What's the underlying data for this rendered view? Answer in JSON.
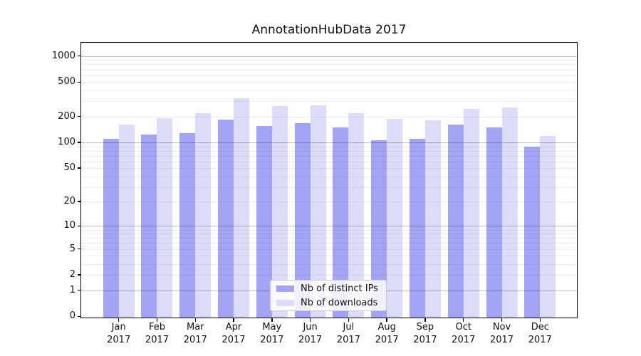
{
  "chart_data": {
    "type": "bar",
    "title": "AnnotationHubData 2017",
    "categories": [
      "Jan 2017",
      "Feb 2017",
      "Mar 2017",
      "Apr 2017",
      "May 2017",
      "Jun 2017",
      "Jul 2017",
      "Aug 2017",
      "Sep 2017",
      "Oct 2017",
      "Nov 2017",
      "Dec 2017"
    ],
    "x_tick_line1": [
      "Jan",
      "Feb",
      "Mar",
      "Apr",
      "May",
      "Jun",
      "Jul",
      "Aug",
      "Sep",
      "Oct",
      "Nov",
      "Dec"
    ],
    "x_tick_line2": "2017",
    "series": [
      {
        "name": "Nb of distinct IPs",
        "color": "#a4a4f4",
        "values": [
          110,
          124,
          128,
          185,
          156,
          167,
          148,
          107,
          110,
          162,
          149,
          89
        ]
      },
      {
        "name": "Nb of downloads",
        "color": "#dcdcf8",
        "values": [
          160,
          192,
          220,
          327,
          262,
          270,
          220,
          189,
          181,
          246,
          254,
          118
        ]
      }
    ],
    "y_scale": "log1p",
    "y_ticks": [
      0,
      1,
      2,
      5,
      10,
      20,
      50,
      100,
      200,
      500,
      1000
    ],
    "ylim": [
      0,
      1400
    ],
    "grid": true,
    "legend_position": "lower center",
    "colors": {
      "grid_major": "rgba(0,0,0,0.25)",
      "grid_minor": "rgba(0,0,0,0.065)",
      "spine": "#000000",
      "text": "#111111",
      "legend_border": "#cbcbcb"
    }
  }
}
